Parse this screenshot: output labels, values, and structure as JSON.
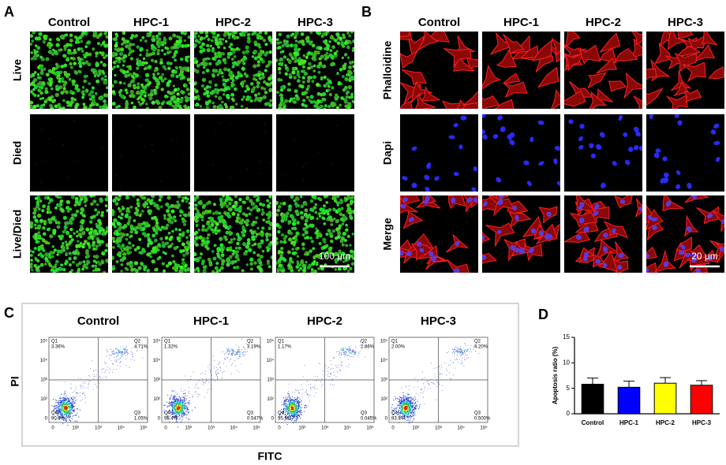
{
  "panels": {
    "A": {
      "letter": "A",
      "columns": [
        "Control",
        "HPC-1",
        "HPC-2",
        "HPC-3"
      ],
      "rows": [
        "Live",
        "Died",
        "Live/Died"
      ],
      "scale_bar": "100 μm"
    },
    "B": {
      "letter": "B",
      "columns": [
        "Control",
        "HPC-1",
        "HPC-2",
        "HPC-3"
      ],
      "rows": [
        "Phalloidine",
        "Dapi",
        "Merge"
      ],
      "scale_bar": "20 μm"
    },
    "C": {
      "letter": "C",
      "y_label": "PI",
      "x_label": "FITC",
      "x_ticks": [
        "0",
        "10²",
        "10³",
        "10⁴",
        "10⁵"
      ],
      "y_ticks": [
        "0",
        "10²",
        "10³",
        "10⁴",
        "10⁵"
      ],
      "plots": [
        {
          "title": "Control",
          "quadrants": [
            {
              "name": "Q1",
              "percent": "3.36%"
            },
            {
              "name": "Q2",
              "percent": "4.71%"
            },
            {
              "name": "Q3",
              "percent": "1.05%"
            },
            {
              "name": "Q4",
              "percent": "90.9%"
            }
          ]
        },
        {
          "title": "HPC-1",
          "quadrants": [
            {
              "name": "Q1",
              "percent": "1.32%"
            },
            {
              "name": "Q2",
              "percent": "3.19%"
            },
            {
              "name": "Q3",
              "percent": "0.547%"
            },
            {
              "name": "Q4",
              "percent": "95.4%"
            }
          ]
        },
        {
          "title": "HPC-2",
          "quadrants": [
            {
              "name": "Q1",
              "percent": "1.17%"
            },
            {
              "name": "Q2",
              "percent": "2.86%"
            },
            {
              "name": "Q3",
              "percent": "0.045%"
            },
            {
              "name": "Q4",
              "percent": "95.9%"
            }
          ]
        },
        {
          "title": "HPC-3",
          "quadrants": [
            {
              "name": "Q1",
              "percent": "2.00%"
            },
            {
              "name": "Q2",
              "percent": "4.20%"
            },
            {
              "name": "Q3",
              "percent": "0.500%"
            },
            {
              "name": "Q4",
              "percent": "93.3%"
            }
          ]
        }
      ]
    },
    "D": {
      "letter": "D"
    }
  },
  "chart_data": {
    "type": "bar",
    "y_label": "Apoptosis ratio (%)",
    "categories": [
      "Control",
      "HPC-1",
      "HPC-2",
      "HPC-3"
    ],
    "values": [
      5.8,
      5.2,
      6.0,
      5.6
    ],
    "errors": [
      1.2,
      1.2,
      1.1,
      0.9
    ],
    "colors": [
      "#000000",
      "#0000ff",
      "#ffff00",
      "#ff0000"
    ],
    "ylim": [
      0,
      15
    ],
    "yticks": [
      0,
      5,
      10,
      15
    ]
  }
}
